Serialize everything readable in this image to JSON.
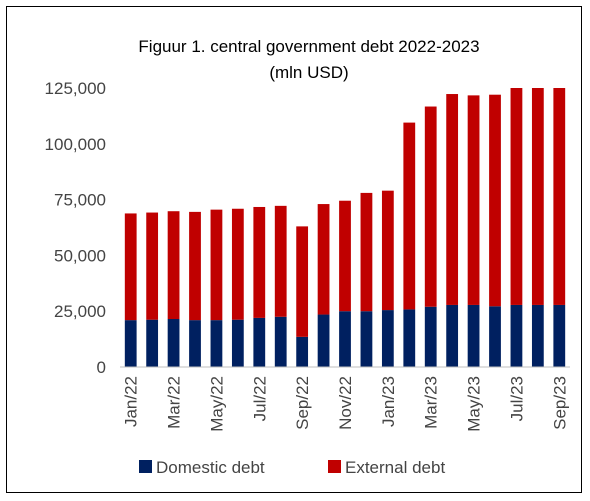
{
  "chart_data": {
    "type": "bar",
    "stacked": true,
    "title": "Figuur 1. central government debt 2022-2023",
    "subtitle": "(mln USD)",
    "categories": [
      "Jan/22",
      "Feb/22",
      "Mar/22",
      "Apr/22",
      "May/22",
      "Jun/22",
      "Jul/22",
      "Aug/22",
      "Sep/22",
      "Oct/22",
      "Nov/22",
      "Dec/22",
      "Jan/23",
      "Feb/23",
      "Mar/23",
      "Apr/23",
      "May/23",
      "Jun/23",
      "Jul/23",
      "Aug/23",
      "Sep/23"
    ],
    "tick_labels": [
      "Jan/22",
      "",
      "Mar/22",
      "",
      "May/22",
      "",
      "Jul/22",
      "",
      "Sep/22",
      "",
      "Nov/22",
      "",
      "Jan/23",
      "",
      "Mar/23",
      "",
      "May/23",
      "",
      "Jul/23",
      "",
      "Sep/23"
    ],
    "series": [
      {
        "name": "Domestic debt",
        "color": "#002060",
        "values": [
          21000,
          21200,
          21500,
          21000,
          21000,
          21200,
          22000,
          22500,
          13500,
          23500,
          25000,
          25000,
          25500,
          25800,
          27000,
          27800,
          27800,
          27200,
          27800,
          27800,
          27800
        ]
      },
      {
        "name": "External debt",
        "color": "#C00000",
        "values": [
          47800,
          48000,
          48300,
          48500,
          49500,
          49700,
          49700,
          49700,
          49500,
          49500,
          49500,
          53000,
          53500,
          83700,
          89700,
          94500,
          93900,
          94800,
          97500,
          97500,
          97500
        ]
      }
    ],
    "ylim": [
      0,
      125000
    ],
    "yticks": [
      0,
      25000,
      50000,
      75000,
      100000,
      125000
    ],
    "ytick_labels": [
      "0",
      "25,000",
      "50,000",
      "75,000",
      "100,000",
      "125,000"
    ],
    "grid": false,
    "legend_position": "bottom"
  }
}
